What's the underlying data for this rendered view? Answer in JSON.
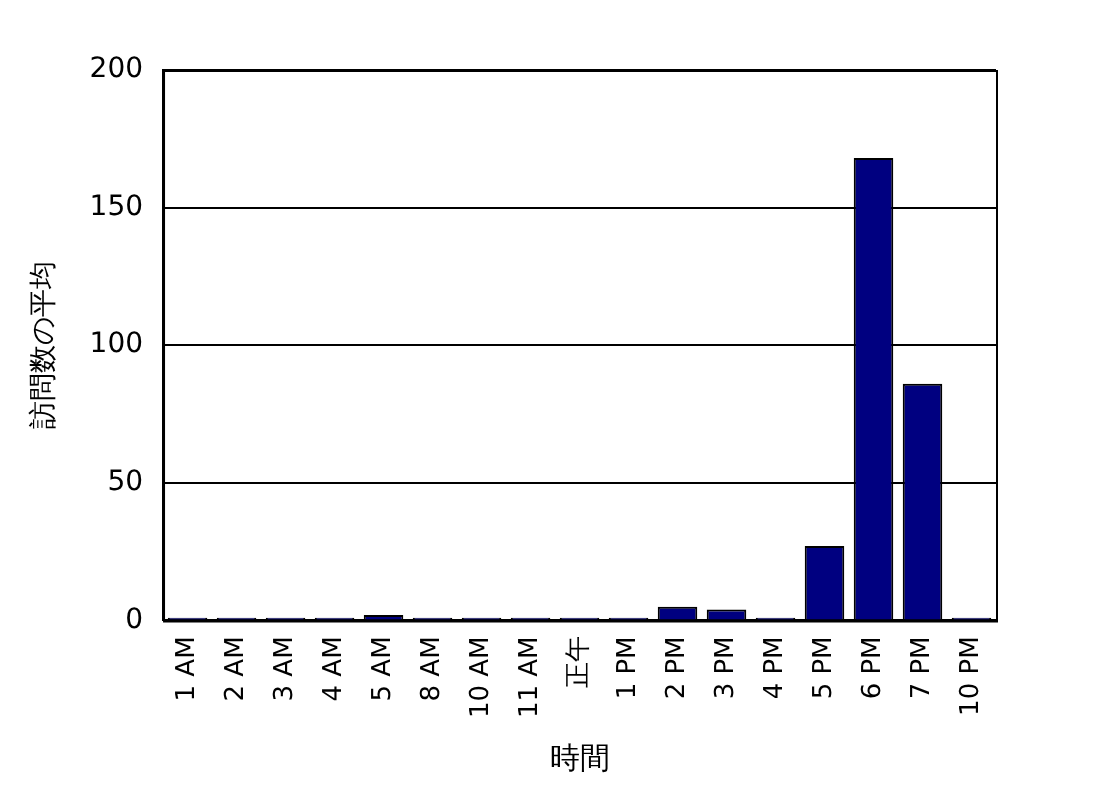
{
  "chart_data": {
    "type": "bar",
    "xlabel": "時間",
    "ylabel": "訪問数の平均",
    "categories": [
      "1 AM",
      "2 AM",
      "3 AM",
      "4 AM",
      "5 AM",
      "8 AM",
      "10 AM",
      "11 AM",
      "正午",
      "1 PM",
      "2 PM",
      "3 PM",
      "4 PM",
      "5 PM",
      "6 PM",
      "7 PM",
      "10 PM"
    ],
    "values": [
      1,
      1,
      1,
      1,
      2,
      1,
      1,
      1,
      1,
      1,
      5,
      4,
      1,
      27,
      168,
      86,
      1
    ],
    "color": "#000080",
    "ylim": [
      0,
      200
    ],
    "yticks": [
      0,
      50,
      100,
      150,
      200
    ],
    "grid": "y",
    "legend": false
  }
}
